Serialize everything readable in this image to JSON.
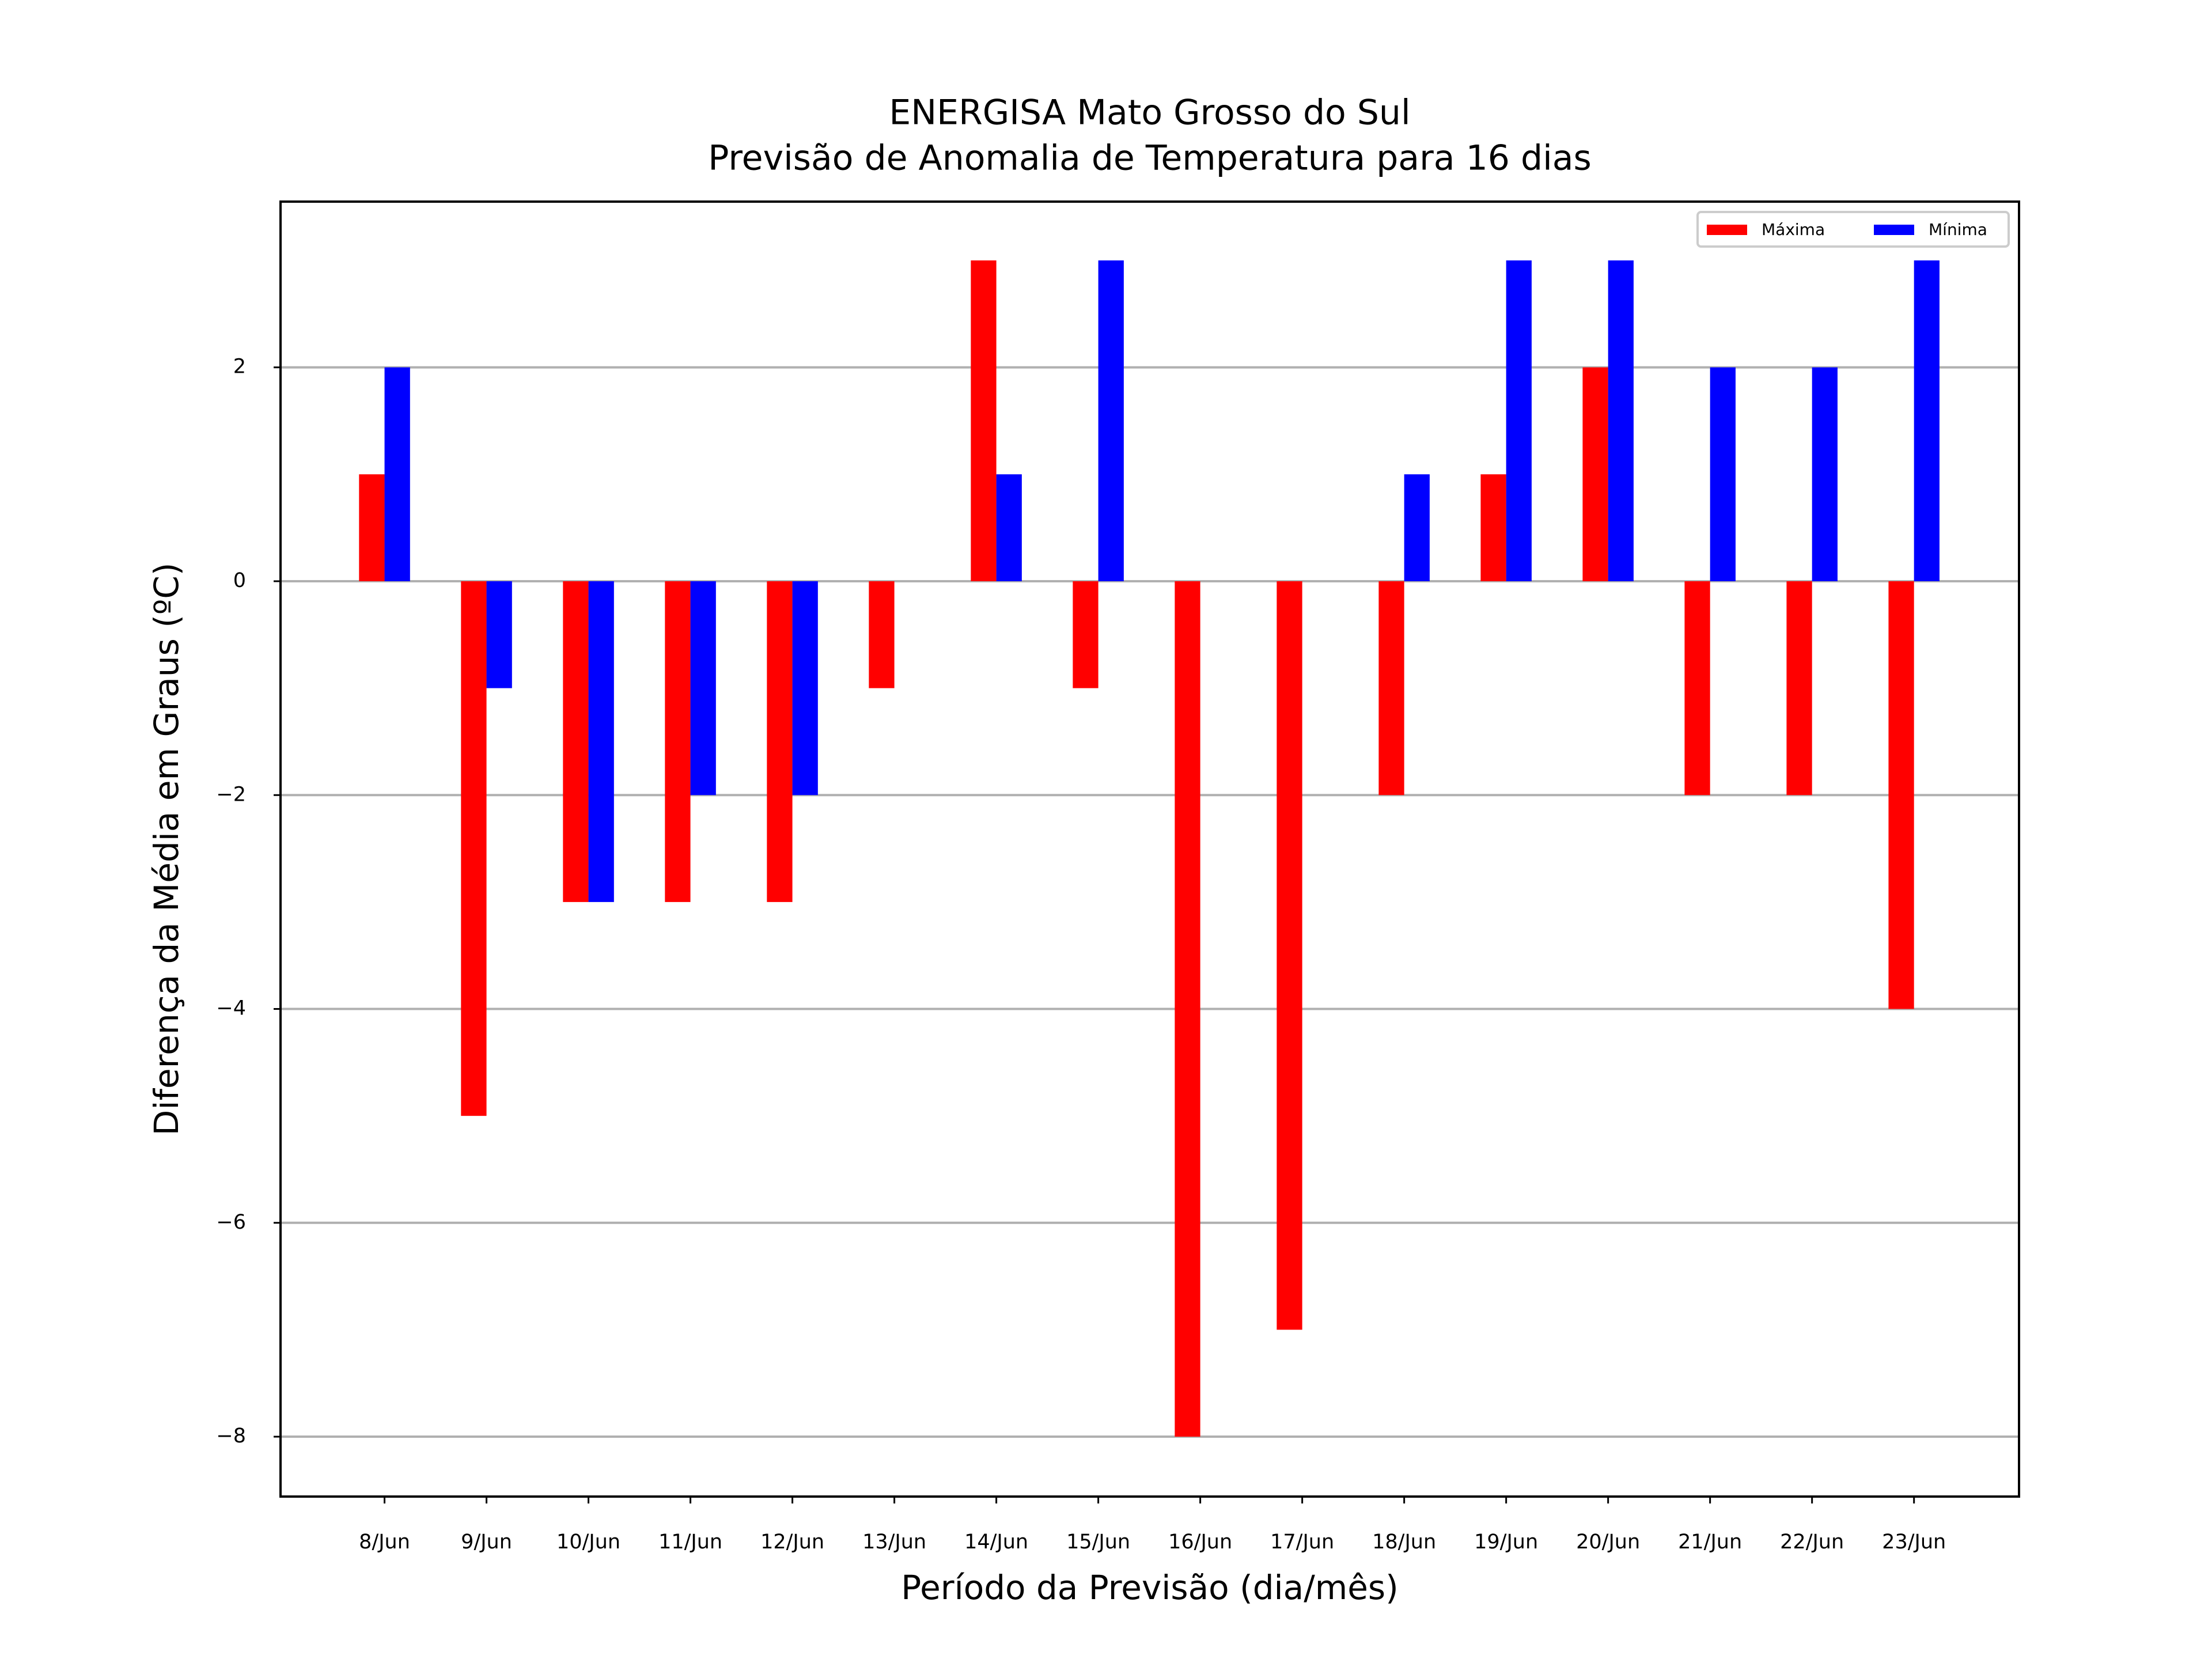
{
  "chart_data": {
    "type": "bar",
    "title": "ENERGISA Mato Grosso do Sul",
    "subtitle": "Previsão de Anomalia de Temperatura para 16 dias",
    "x_label": "Período da Previsão (dia/mês)",
    "y_label": "Diferença da Média em Graus (ºC)",
    "categories": [
      "8/Jun",
      "9/Jun",
      "10/Jun",
      "11/Jun",
      "12/Jun",
      "13/Jun",
      "14/Jun",
      "15/Jun",
      "16/Jun",
      "17/Jun",
      "18/Jun",
      "19/Jun",
      "20/Jun",
      "21/Jun",
      "22/Jun",
      "23/Jun"
    ],
    "series": [
      {
        "name": "Máxima",
        "color": "#ff0000",
        "values": [
          1,
          -5,
          -3,
          -3,
          -3,
          -1,
          3,
          -1,
          -8,
          -7,
          -2,
          1,
          2,
          -2,
          -2,
          -4
        ]
      },
      {
        "name": "Mínima",
        "color": "#0000ff",
        "values": [
          2,
          -1,
          -3,
          -2,
          -2,
          0,
          1,
          3,
          0,
          0,
          1,
          3,
          3,
          2,
          2,
          3
        ]
      }
    ],
    "ylim": [
      -8.56,
      3.55
    ],
    "yticks": [
      {
        "value": -8,
        "label": "−8"
      },
      {
        "value": -6,
        "label": "−6"
      },
      {
        "value": -4,
        "label": "−4"
      },
      {
        "value": -2,
        "label": "−2"
      },
      0,
      2
    ],
    "grid": true,
    "legend": "upper right"
  }
}
